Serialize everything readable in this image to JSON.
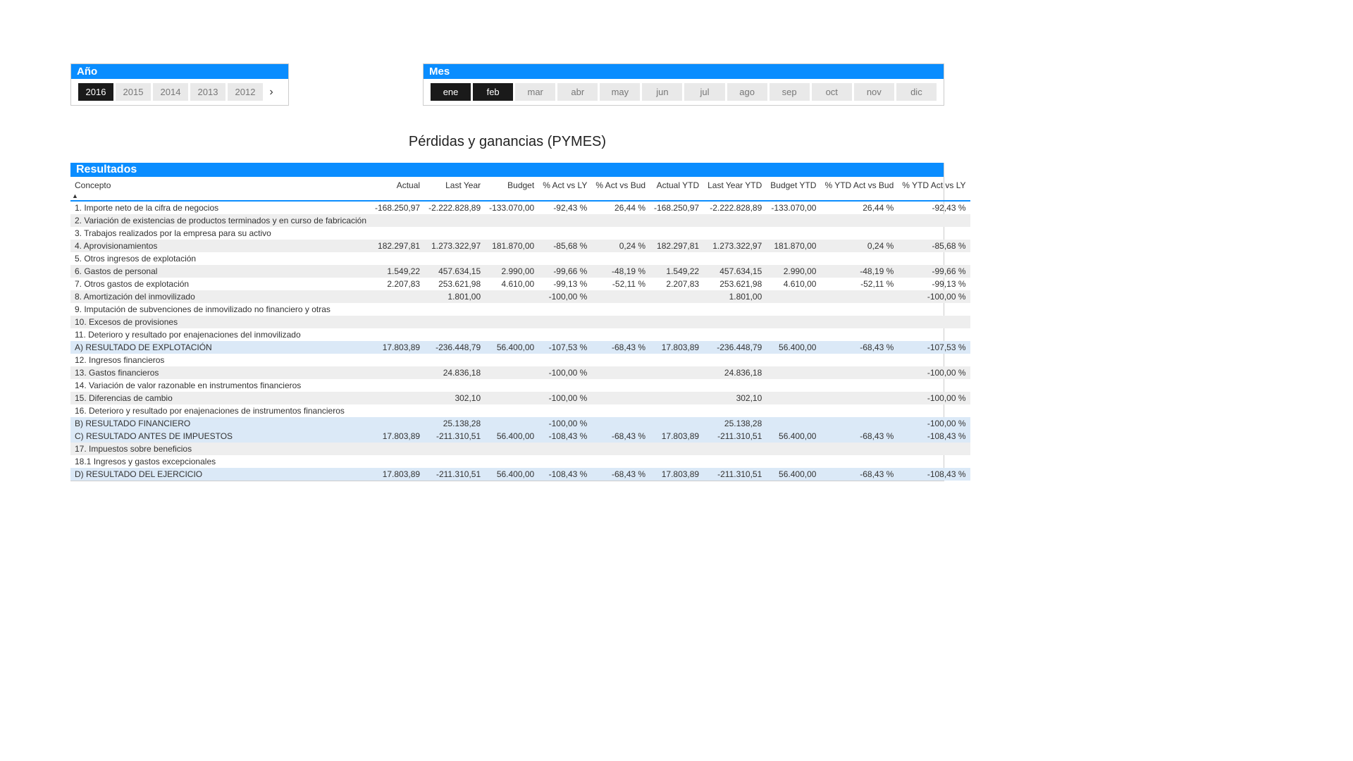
{
  "colors": {
    "primary": "#0a8dff",
    "selected_bg": "#1a1a1a",
    "item_bg": "#e9e9e9",
    "stripe": "#eeeeee",
    "highlight": "#dbe9f7"
  },
  "yearFilter": {
    "title": "Año",
    "items": [
      {
        "label": "2016",
        "selected": true
      },
      {
        "label": "2015",
        "selected": false
      },
      {
        "label": "2014",
        "selected": false
      },
      {
        "label": "2013",
        "selected": false
      },
      {
        "label": "2012",
        "selected": false
      }
    ],
    "hasScroll": true
  },
  "monthFilter": {
    "title": "Mes",
    "items": [
      {
        "label": "ene",
        "selected": true
      },
      {
        "label": "feb",
        "selected": true
      },
      {
        "label": "mar",
        "selected": false
      },
      {
        "label": "abr",
        "selected": false
      },
      {
        "label": "may",
        "selected": false
      },
      {
        "label": "jun",
        "selected": false
      },
      {
        "label": "jul",
        "selected": false
      },
      {
        "label": "ago",
        "selected": false
      },
      {
        "label": "sep",
        "selected": false
      },
      {
        "label": "oct",
        "selected": false
      },
      {
        "label": "nov",
        "selected": false
      },
      {
        "label": "dic",
        "selected": false
      }
    ]
  },
  "pageTitle": "Pérdidas y ganancias  (PYMES)",
  "table": {
    "title": "Resultados",
    "columns": [
      "Concepto",
      "Actual",
      "Last Year",
      "Budget",
      "% Act vs LY",
      "% Act vs Bud",
      "Actual YTD",
      "Last Year YTD",
      "Budget YTD",
      "% YTD Act vs Bud",
      "% YTD Act vs LY"
    ],
    "rows": [
      {
        "hl": false,
        "c": [
          "1. Importe neto de la cifra de negocios",
          "-168.250,97",
          "-2.222.828,89",
          "-133.070,00",
          "-92,43 %",
          "26,44 %",
          "-168.250,97",
          "-2.222.828,89",
          "-133.070,00",
          "26,44 %",
          "-92,43 %"
        ]
      },
      {
        "hl": false,
        "c": [
          "2. Variación de existencias de productos terminados y en curso de fabricación",
          "",
          "",
          "",
          "",
          "",
          "",
          "",
          "",
          "",
          ""
        ]
      },
      {
        "hl": false,
        "c": [
          "3. Trabajos realizados por la empresa para su activo",
          "",
          "",
          "",
          "",
          "",
          "",
          "",
          "",
          "",
          ""
        ]
      },
      {
        "hl": false,
        "c": [
          "4. Aprovisionamientos",
          "182.297,81",
          "1.273.322,97",
          "181.870,00",
          "-85,68 %",
          "0,24 %",
          "182.297,81",
          "1.273.322,97",
          "181.870,00",
          "0,24 %",
          "-85,68 %"
        ]
      },
      {
        "hl": false,
        "c": [
          "5. Otros ingresos de explotación",
          "",
          "",
          "",
          "",
          "",
          "",
          "",
          "",
          "",
          ""
        ]
      },
      {
        "hl": false,
        "c": [
          "6. Gastos de personal",
          "1.549,22",
          "457.634,15",
          "2.990,00",
          "-99,66 %",
          "-48,19 %",
          "1.549,22",
          "457.634,15",
          "2.990,00",
          "-48,19 %",
          "-99,66 %"
        ]
      },
      {
        "hl": false,
        "c": [
          "7. Otros gastos de explotación",
          "2.207,83",
          "253.621,98",
          "4.610,00",
          "-99,13 %",
          "-52,11 %",
          "2.207,83",
          "253.621,98",
          "4.610,00",
          "-52,11 %",
          "-99,13 %"
        ]
      },
      {
        "hl": false,
        "c": [
          "8. Amortización del inmovilizado",
          "",
          "1.801,00",
          "",
          "-100,00 %",
          "",
          "",
          "1.801,00",
          "",
          "",
          "-100,00 %"
        ]
      },
      {
        "hl": false,
        "c": [
          "9. Imputación de subvenciones de inmovilizado no financiero y otras",
          "",
          "",
          "",
          "",
          "",
          "",
          "",
          "",
          "",
          ""
        ]
      },
      {
        "hl": false,
        "c": [
          "10. Excesos de provisiones",
          "",
          "",
          "",
          "",
          "",
          "",
          "",
          "",
          "",
          ""
        ]
      },
      {
        "hl": false,
        "c": [
          "11. Deterioro y resultado por enajenaciones del inmovilizado",
          "",
          "",
          "",
          "",
          "",
          "",
          "",
          "",
          "",
          ""
        ]
      },
      {
        "hl": true,
        "c": [
          "A) RESULTADO DE EXPLOTACIÓN",
          "17.803,89",
          "-236.448,79",
          "56.400,00",
          "-107,53 %",
          "-68,43 %",
          "17.803,89",
          "-236.448,79",
          "56.400,00",
          "-68,43 %",
          "-107,53 %"
        ]
      },
      {
        "hl": false,
        "c": [
          "12. Ingresos financieros",
          "",
          "",
          "",
          "",
          "",
          "",
          "",
          "",
          "",
          ""
        ]
      },
      {
        "hl": false,
        "c": [
          "13. Gastos financieros",
          "",
          "24.836,18",
          "",
          "-100,00 %",
          "",
          "",
          "24.836,18",
          "",
          "",
          "-100,00 %"
        ]
      },
      {
        "hl": false,
        "c": [
          "14. Variación de valor razonable en instrumentos financieros",
          "",
          "",
          "",
          "",
          "",
          "",
          "",
          "",
          "",
          ""
        ]
      },
      {
        "hl": false,
        "c": [
          "15. Diferencias de cambio",
          "",
          "302,10",
          "",
          "-100,00 %",
          "",
          "",
          "302,10",
          "",
          "",
          "-100,00 %"
        ]
      },
      {
        "hl": false,
        "c": [
          "16. Deterioro y resultado por enajenaciones de instrumentos financieros",
          "",
          "",
          "",
          "",
          "",
          "",
          "",
          "",
          "",
          ""
        ]
      },
      {
        "hl": true,
        "c": [
          "B) RESULTADO FINANCIERO",
          "",
          "25.138,28",
          "",
          "-100,00 %",
          "",
          "",
          "25.138,28",
          "",
          "",
          "-100,00 %"
        ]
      },
      {
        "hl": true,
        "c": [
          "C) RESULTADO ANTES DE IMPUESTOS",
          "17.803,89",
          "-211.310,51",
          "56.400,00",
          "-108,43 %",
          "-68,43 %",
          "17.803,89",
          "-211.310,51",
          "56.400,00",
          "-68,43 %",
          "-108,43 %"
        ]
      },
      {
        "hl": false,
        "c": [
          "17. Impuestos sobre beneficios",
          "",
          "",
          "",
          "",
          "",
          "",
          "",
          "",
          "",
          ""
        ]
      },
      {
        "hl": false,
        "c": [
          "18.1 Ingresos y gastos excepcionales",
          "",
          "",
          "",
          "",
          "",
          "",
          "",
          "",
          "",
          ""
        ]
      },
      {
        "hl": true,
        "c": [
          "D) RESULTADO DEL EJERCICIO",
          "17.803,89",
          "-211.310,51",
          "56.400,00",
          "-108,43 %",
          "-68,43 %",
          "17.803,89",
          "-211.310,51",
          "56.400,00",
          "-68,43 %",
          "-108,43 %"
        ]
      }
    ]
  }
}
